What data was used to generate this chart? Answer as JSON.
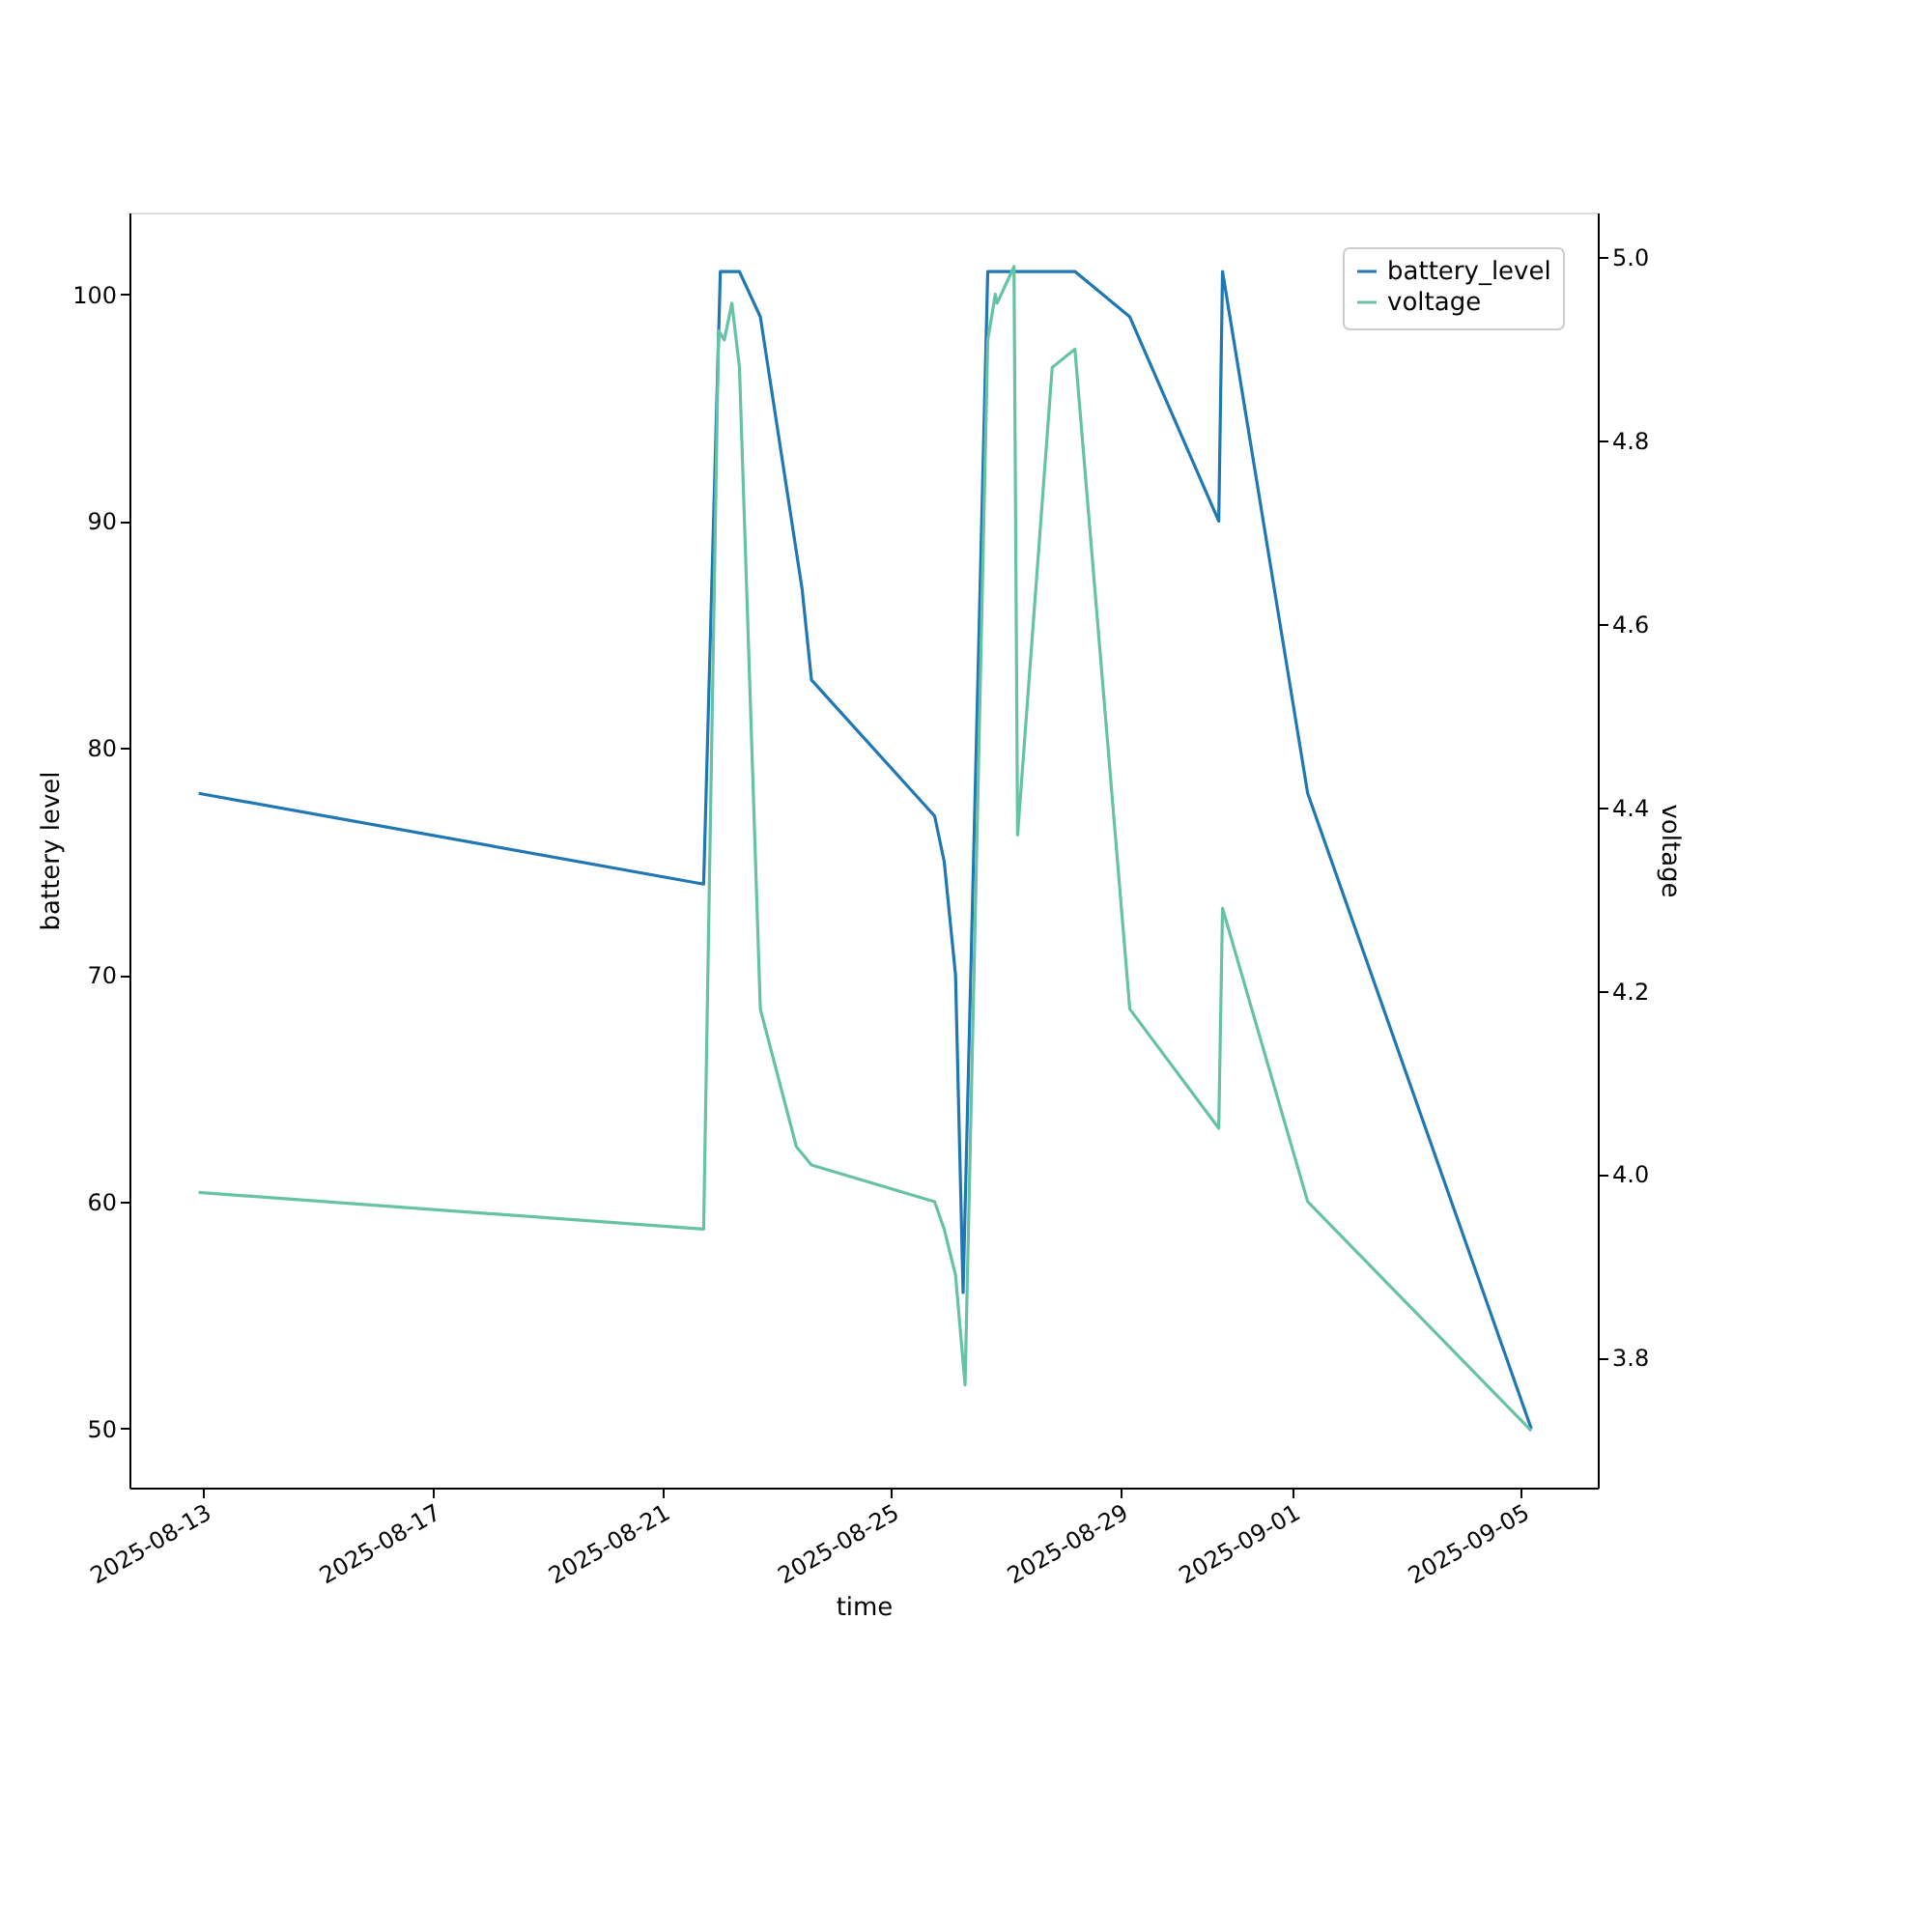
{
  "chart_data": {
    "type": "line",
    "xlabel": "time",
    "ylabel": "battery level",
    "y2label": "voltage",
    "xlim": [
      "2025-08-11T17:00",
      "2025-09-06T08:00"
    ],
    "xticks": [
      "2025-08-13",
      "2025-08-17",
      "2025-08-21",
      "2025-08-25",
      "2025-08-29",
      "2025-09-01",
      "2025-09-05"
    ],
    "ylim": [
      47.4,
      103.6
    ],
    "yticks": [
      50,
      60,
      70,
      80,
      90,
      100
    ],
    "y2lim": [
      3.658,
      5.049
    ],
    "y2ticks": [
      {
        "value": 3.8,
        "label": "3.8"
      },
      {
        "value": 4.0,
        "label": "4.0"
      },
      {
        "value": 4.2,
        "label": "4.2"
      },
      {
        "value": 4.4,
        "label": "4.4"
      },
      {
        "value": 4.6,
        "label": "4.6"
      },
      {
        "value": 4.8,
        "label": "4.8"
      },
      {
        "value": 5.0,
        "label": "5.0"
      }
    ],
    "grid": false,
    "legend": "top right",
    "line_style": "solid",
    "marker": "none",
    "series": [
      {
        "name": "battery_level",
        "color": "#1f77b4",
        "x": [
          "2025-08-12T22:00",
          "2025-08-21T17:30",
          "2025-08-22T00:30",
          "2025-08-22T08:30",
          "2025-08-22T17:15",
          "2025-08-23T10:45",
          "2025-08-23T14:40",
          "2025-08-25T18:15",
          "2025-08-25T22:15",
          "2025-08-26T03:00",
          "2025-08-26T06:10",
          "2025-08-26T16:30",
          "2025-08-28T05:00",
          "2025-08-29T04:00",
          "2025-08-30T17:15",
          "2025-08-30T18:50",
          "2025-09-01T06:30",
          "2025-09-05T04:10"
        ],
        "values": [
          78,
          74,
          101,
          101,
          99,
          87,
          83,
          77,
          75,
          70,
          56,
          101,
          101,
          99,
          90,
          101,
          78,
          50
        ]
      },
      {
        "name": "voltage",
        "color": "#66c2a5",
        "axis": "y2",
        "x": [
          "2025-08-12T22:00",
          "2025-08-21T17:30",
          "2025-08-21T23:45",
          "2025-08-22T02:10",
          "2025-08-22T05:20",
          "2025-08-22T08:30",
          "2025-08-22T17:15",
          "2025-08-23T08:20",
          "2025-08-23T14:40",
          "2025-08-25T18:15",
          "2025-08-25T22:15",
          "2025-08-26T03:00",
          "2025-08-26T07:00",
          "2025-08-26T16:30",
          "2025-08-26T19:40",
          "2025-08-26T20:25",
          "2025-08-27T03:30",
          "2025-08-27T05:00",
          "2025-08-27T19:30",
          "2025-08-28T05:00",
          "2025-08-29T04:00",
          "2025-08-30T17:15",
          "2025-08-30T18:50",
          "2025-09-01T06:30",
          "2025-09-05T04:10"
        ],
        "values": [
          3.98,
          3.94,
          4.92,
          4.91,
          4.95,
          4.88,
          4.18,
          4.03,
          4.01,
          3.97,
          3.94,
          3.89,
          3.77,
          4.91,
          4.96,
          4.95,
          4.99,
          4.37,
          4.88,
          4.9,
          4.18,
          4.05,
          4.29,
          3.97,
          3.72
        ]
      }
    ]
  }
}
